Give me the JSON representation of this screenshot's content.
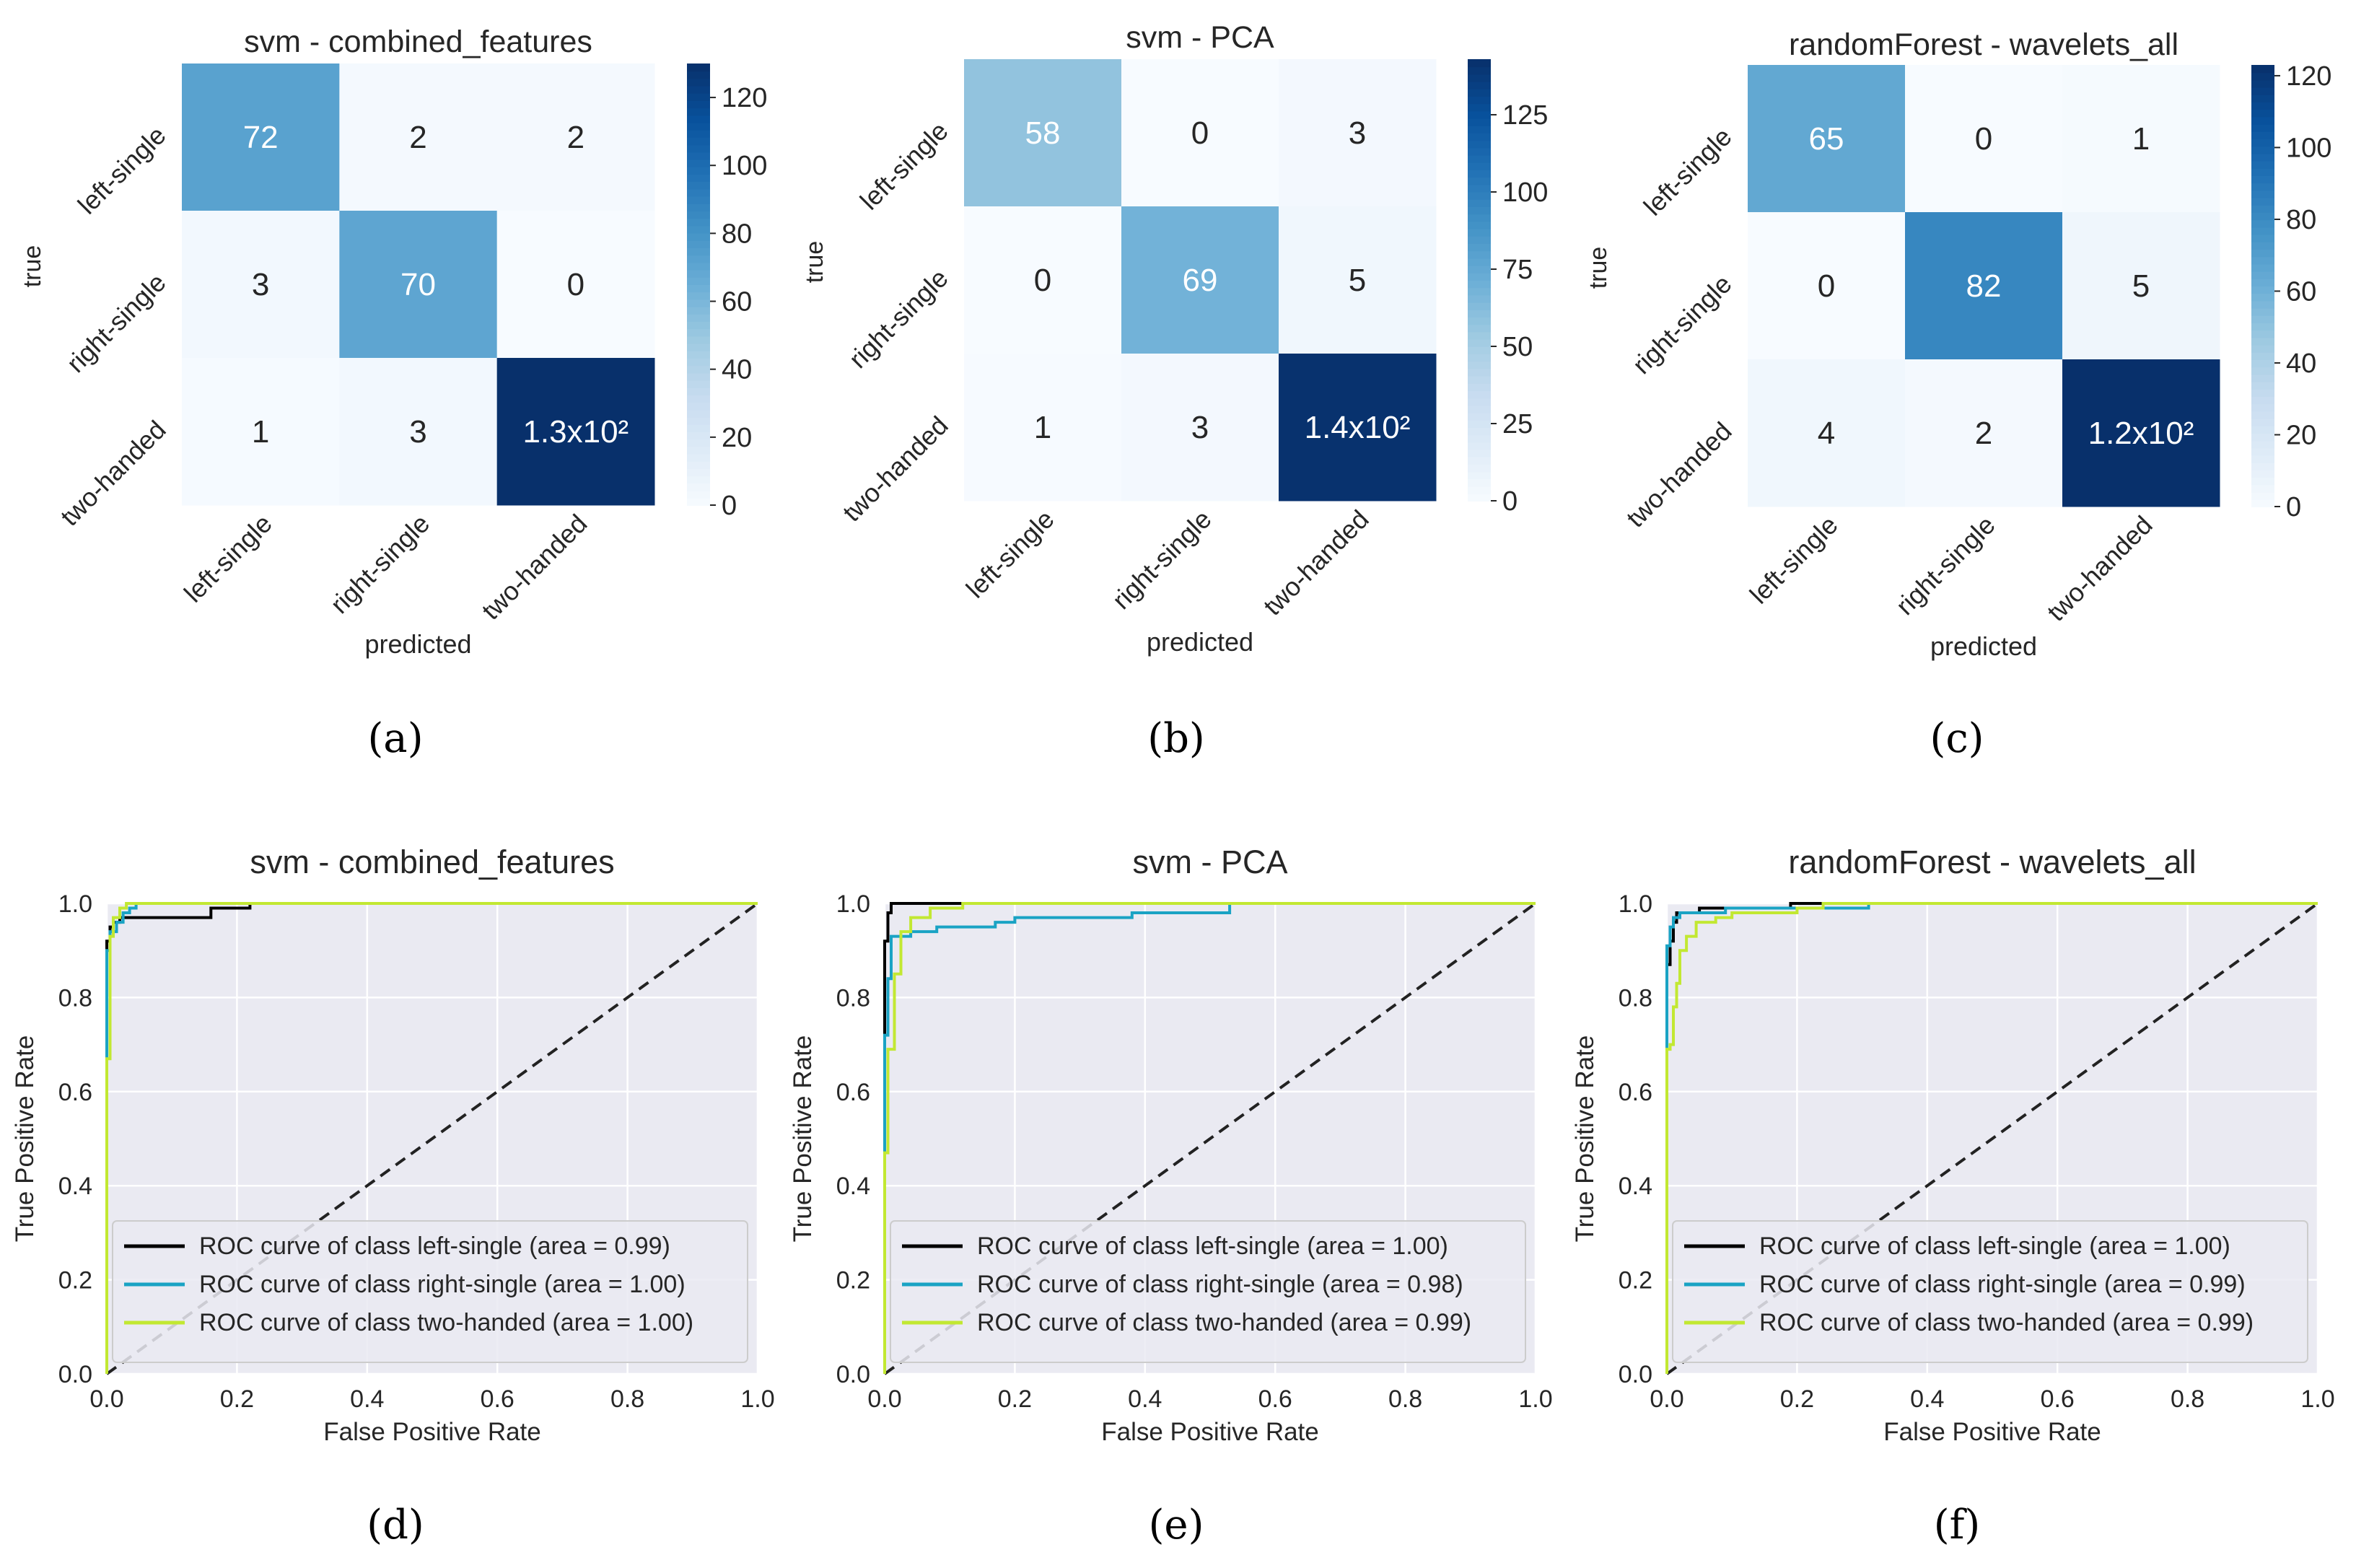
{
  "chart_data": [
    {
      "type": "heatmap",
      "title": "svm - combined_features",
      "xlabel": "predicted",
      "ylabel": "true",
      "row_labels": [
        "left-single",
        "right-single",
        "two-handed"
      ],
      "col_labels": [
        "left-single",
        "right-single",
        "two-handed"
      ],
      "values": [
        [
          72,
          2,
          2
        ],
        [
          3,
          70,
          0
        ],
        [
          1,
          3,
          130
        ]
      ],
      "cell_text": [
        [
          "72",
          "2",
          "2"
        ],
        [
          "3",
          "70",
          "0"
        ],
        [
          "1",
          "3",
          "1.3x10²"
        ]
      ],
      "colorbar": {
        "min": 0,
        "max": 130,
        "ticks": [
          0,
          20,
          40,
          60,
          80,
          100,
          120
        ]
      },
      "caption": "(a)"
    },
    {
      "type": "heatmap",
      "title": "svm - PCA",
      "xlabel": "predicted",
      "ylabel": "true",
      "row_labels": [
        "left-single",
        "right-single",
        "two-handed"
      ],
      "col_labels": [
        "left-single",
        "right-single",
        "two-handed"
      ],
      "values": [
        [
          58,
          0,
          3
        ],
        [
          0,
          69,
          5
        ],
        [
          1,
          3,
          142
        ]
      ],
      "cell_text": [
        [
          "58",
          "0",
          "3"
        ],
        [
          "0",
          "69",
          "5"
        ],
        [
          "1",
          "3",
          "1.4x10²"
        ]
      ],
      "colorbar": {
        "min": 0,
        "max": 143,
        "ticks": [
          0,
          25,
          50,
          75,
          100,
          125
        ]
      },
      "caption": "(b)"
    },
    {
      "type": "heatmap",
      "title": "randomForest - wavelets_all",
      "xlabel": "predicted",
      "ylabel": "true",
      "row_labels": [
        "left-single",
        "right-single",
        "two-handed"
      ],
      "col_labels": [
        "left-single",
        "right-single",
        "two-handed"
      ],
      "values": [
        [
          65,
          0,
          1
        ],
        [
          0,
          82,
          5
        ],
        [
          4,
          2,
          123
        ]
      ],
      "cell_text": [
        [
          "65",
          "0",
          "1"
        ],
        [
          "0",
          "82",
          "5"
        ],
        [
          "4",
          "2",
          "1.2x10²"
        ]
      ],
      "colorbar": {
        "min": 0,
        "max": 123,
        "ticks": [
          0,
          20,
          40,
          60,
          80,
          100,
          120
        ]
      },
      "caption": "(c)"
    },
    {
      "type": "line",
      "title": "svm - combined_features",
      "xlabel": "False Positive Rate",
      "ylabel": "True Positive Rate",
      "xlim": [
        0,
        1
      ],
      "ylim": [
        0,
        1
      ],
      "ticks": [
        0,
        0.2,
        0.4,
        0.6,
        0.8,
        1
      ],
      "tick_labels": [
        "0.0",
        "0.2",
        "0.4",
        "0.6",
        "0.8",
        "1.0"
      ],
      "grid": true,
      "legend_position": "lower-right",
      "series": [
        {
          "name": "ROC curve of class left-single (area = 0.99)",
          "color": "#000000",
          "points": [
            [
              0,
              0
            ],
            [
              0,
              0.92
            ],
            [
              0.005,
              0.92
            ],
            [
              0.005,
              0.95
            ],
            [
              0.01,
              0.95
            ],
            [
              0.01,
              0.96
            ],
            [
              0.02,
              0.96
            ],
            [
              0.02,
              0.97
            ],
            [
              0.16,
              0.97
            ],
            [
              0.16,
              0.99
            ],
            [
              0.22,
              0.99
            ],
            [
              0.22,
              1.0
            ],
            [
              1,
              1
            ]
          ]
        },
        {
          "name": "ROC curve of class right-single (area = 1.00)",
          "color": "#1aa3c4",
          "points": [
            [
              0,
              0
            ],
            [
              0,
              0.9
            ],
            [
              0.005,
              0.9
            ],
            [
              0.005,
              0.94
            ],
            [
              0.015,
              0.94
            ],
            [
              0.015,
              0.96
            ],
            [
              0.025,
              0.96
            ],
            [
              0.025,
              0.98
            ],
            [
              0.035,
              0.98
            ],
            [
              0.035,
              0.99
            ],
            [
              0.045,
              0.99
            ],
            [
              0.045,
              1.0
            ],
            [
              1,
              1
            ]
          ]
        },
        {
          "name": "ROC curve of class two-handed (area = 1.00)",
          "color": "#c2e832",
          "points": [
            [
              0,
              0
            ],
            [
              0,
              0.67
            ],
            [
              0.005,
              0.67
            ],
            [
              0.005,
              0.93
            ],
            [
              0.01,
              0.93
            ],
            [
              0.01,
              0.97
            ],
            [
              0.02,
              0.97
            ],
            [
              0.02,
              0.99
            ],
            [
              0.03,
              0.99
            ],
            [
              0.03,
              1.0
            ],
            [
              1,
              1
            ]
          ]
        }
      ],
      "diagonal": true,
      "caption": "(d)"
    },
    {
      "type": "line",
      "title": "svm - PCA",
      "xlabel": "False Positive Rate",
      "ylabel": "True Positive Rate",
      "xlim": [
        0,
        1
      ],
      "ylim": [
        0,
        1
      ],
      "ticks": [
        0,
        0.2,
        0.4,
        0.6,
        0.8,
        1
      ],
      "tick_labels": [
        "0.0",
        "0.2",
        "0.4",
        "0.6",
        "0.8",
        "1.0"
      ],
      "grid": true,
      "legend_position": "lower-right",
      "series": [
        {
          "name": "ROC curve of class left-single (area = 1.00)",
          "color": "#000000",
          "points": [
            [
              0,
              0
            ],
            [
              0,
              0.92
            ],
            [
              0.005,
              0.92
            ],
            [
              0.005,
              0.98
            ],
            [
              0.01,
              0.98
            ],
            [
              0.01,
              1.0
            ],
            [
              0.17,
              1.0
            ],
            [
              1,
              1
            ]
          ]
        },
        {
          "name": "ROC curve of class right-single (area = 0.98)",
          "color": "#1aa3c4",
          "points": [
            [
              0,
              0
            ],
            [
              0,
              0.72
            ],
            [
              0.005,
              0.72
            ],
            [
              0.005,
              0.84
            ],
            [
              0.01,
              0.84
            ],
            [
              0.01,
              0.93
            ],
            [
              0.04,
              0.93
            ],
            [
              0.04,
              0.94
            ],
            [
              0.08,
              0.94
            ],
            [
              0.08,
              0.95
            ],
            [
              0.17,
              0.95
            ],
            [
              0.17,
              0.96
            ],
            [
              0.2,
              0.96
            ],
            [
              0.2,
              0.97
            ],
            [
              0.38,
              0.97
            ],
            [
              0.38,
              0.98
            ],
            [
              0.53,
              0.98
            ],
            [
              0.53,
              1.0
            ],
            [
              1,
              1
            ]
          ]
        },
        {
          "name": "ROC curve of class two-handed (area = 0.99)",
          "color": "#c2e832",
          "points": [
            [
              0,
              0
            ],
            [
              0,
              0.47
            ],
            [
              0.005,
              0.47
            ],
            [
              0.005,
              0.69
            ],
            [
              0.015,
              0.69
            ],
            [
              0.015,
              0.85
            ],
            [
              0.025,
              0.85
            ],
            [
              0.025,
              0.94
            ],
            [
              0.04,
              0.94
            ],
            [
              0.04,
              0.97
            ],
            [
              0.07,
              0.97
            ],
            [
              0.07,
              0.99
            ],
            [
              0.12,
              0.99
            ],
            [
              0.12,
              1.0
            ],
            [
              1,
              1
            ]
          ]
        }
      ],
      "diagonal": true,
      "caption": "(e)"
    },
    {
      "type": "line",
      "title": "randomForest - wavelets_all",
      "xlabel": "False Positive Rate",
      "ylabel": "True Positive Rate",
      "xlim": [
        0,
        1
      ],
      "ylim": [
        0,
        1
      ],
      "ticks": [
        0,
        0.2,
        0.4,
        0.6,
        0.8,
        1
      ],
      "tick_labels": [
        "0.0",
        "0.2",
        "0.4",
        "0.6",
        "0.8",
        "1.0"
      ],
      "grid": true,
      "legend_position": "lower-right",
      "series": [
        {
          "name": "ROC curve of class left-single (area = 1.00)",
          "color": "#000000",
          "points": [
            [
              0,
              0
            ],
            [
              0,
              0.87
            ],
            [
              0.005,
              0.87
            ],
            [
              0.005,
              0.92
            ],
            [
              0.01,
              0.92
            ],
            [
              0.01,
              0.96
            ],
            [
              0.015,
              0.96
            ],
            [
              0.015,
              0.98
            ],
            [
              0.05,
              0.98
            ],
            [
              0.05,
              0.99
            ],
            [
              0.19,
              0.99
            ],
            [
              0.19,
              1.0
            ],
            [
              1,
              1
            ]
          ]
        },
        {
          "name": "ROC curve of class right-single (area = 0.99)",
          "color": "#1aa3c4",
          "points": [
            [
              0,
              0
            ],
            [
              0,
              0.91
            ],
            [
              0.005,
              0.91
            ],
            [
              0.005,
              0.95
            ],
            [
              0.01,
              0.95
            ],
            [
              0.01,
              0.97
            ],
            [
              0.02,
              0.97
            ],
            [
              0.02,
              0.98
            ],
            [
              0.09,
              0.98
            ],
            [
              0.09,
              0.99
            ],
            [
              0.31,
              0.99
            ],
            [
              0.31,
              1.0
            ],
            [
              1,
              1
            ]
          ]
        },
        {
          "name": "ROC curve of class two-handed (area = 0.99)",
          "color": "#c2e832",
          "points": [
            [
              0,
              0
            ],
            [
              0,
              0.69
            ],
            [
              0.005,
              0.69
            ],
            [
              0.005,
              0.7
            ],
            [
              0.01,
              0.7
            ],
            [
              0.01,
              0.78
            ],
            [
              0.015,
              0.78
            ],
            [
              0.015,
              0.83
            ],
            [
              0.02,
              0.83
            ],
            [
              0.02,
              0.9
            ],
            [
              0.03,
              0.9
            ],
            [
              0.03,
              0.93
            ],
            [
              0.045,
              0.93
            ],
            [
              0.045,
              0.96
            ],
            [
              0.075,
              0.96
            ],
            [
              0.075,
              0.97
            ],
            [
              0.1,
              0.97
            ],
            [
              0.1,
              0.98
            ],
            [
              0.2,
              0.98
            ],
            [
              0.2,
              0.99
            ],
            [
              0.24,
              0.99
            ],
            [
              0.24,
              1.0
            ],
            [
              1,
              1
            ]
          ]
        }
      ],
      "diagonal": true,
      "caption": "(f)"
    }
  ]
}
